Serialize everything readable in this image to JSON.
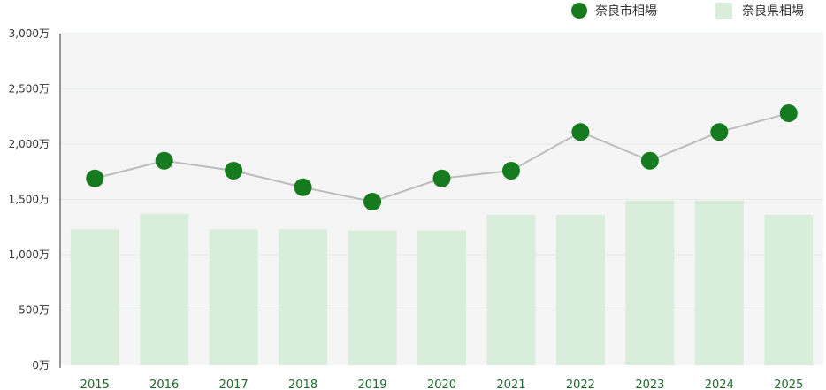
{
  "chart_data": {
    "type": "bar",
    "categories": [
      "2015",
      "2016",
      "2017",
      "2018",
      "2019",
      "2020",
      "2021",
      "2022",
      "2023",
      "2024",
      "2025"
    ],
    "series": [
      {
        "name": "奈良県相場",
        "type": "bar",
        "values": [
          1230,
          1370,
          1230,
          1230,
          1220,
          1220,
          1360,
          1360,
          1490,
          1490,
          1360
        ]
      },
      {
        "name": "奈良市相場",
        "type": "line",
        "values": [
          1690,
          1850,
          1760,
          1610,
          1480,
          1690,
          1760,
          2110,
          1850,
          2110,
          2280
        ]
      }
    ],
    "y_ticks": [
      "0万",
      "500万",
      "1,000万",
      "1,500万",
      "2,000万",
      "2,500万",
      "3,000万"
    ],
    "ylim": [
      0,
      3000
    ],
    "grid": true,
    "legend_position": "top-right",
    "colors": {
      "bar": "#d8eedb",
      "line": "#bdbdbd",
      "point": "#167a1f",
      "plot_bg": "#f5f5f5",
      "grid": "#e6ece6",
      "axis": "#333333",
      "tick_x": "#1f6b2a"
    }
  }
}
